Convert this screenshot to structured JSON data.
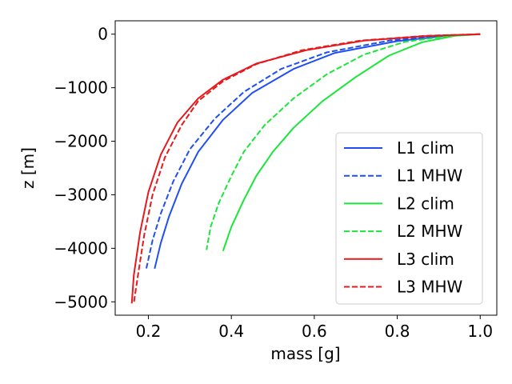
{
  "chart_data": {
    "type": "line",
    "title": "",
    "xlabel": "mass [g]",
    "ylabel": "z [m]",
    "xlim": [
      0.12,
      1.04
    ],
    "ylim": [
      -5250,
      250
    ],
    "xticks": [
      0.2,
      0.4,
      0.6,
      0.8,
      1.0
    ],
    "xtick_labels": [
      "0.2",
      "0.4",
      "0.6",
      "0.8",
      "1.0"
    ],
    "yticks": [
      0,
      -1000,
      -2000,
      -3000,
      -4000,
      -5000
    ],
    "ytick_labels": [
      "0",
      "−1000",
      "−2000",
      "−3000",
      "−4000",
      "−5000"
    ],
    "grid": false,
    "legend_position": "lower-right",
    "series": [
      {
        "name": "L1 clim",
        "color": "#1f4ff2",
        "dash": "solid",
        "points": [
          [
            1.0,
            0
          ],
          [
            0.92,
            -30
          ],
          [
            0.8,
            -130
          ],
          [
            0.65,
            -350
          ],
          [
            0.55,
            -650
          ],
          [
            0.45,
            -1100
          ],
          [
            0.38,
            -1600
          ],
          [
            0.32,
            -2200
          ],
          [
            0.28,
            -2800
          ],
          [
            0.25,
            -3400
          ],
          [
            0.23,
            -3900
          ],
          [
            0.215,
            -4380
          ]
        ]
      },
      {
        "name": "L1 MHW",
        "color": "#1f4ff2",
        "dash": "dashed",
        "points": [
          [
            1.0,
            0
          ],
          [
            0.9,
            -30
          ],
          [
            0.78,
            -120
          ],
          [
            0.63,
            -340
          ],
          [
            0.52,
            -650
          ],
          [
            0.43,
            -1080
          ],
          [
            0.36,
            -1580
          ],
          [
            0.3,
            -2150
          ],
          [
            0.26,
            -2750
          ],
          [
            0.23,
            -3350
          ],
          [
            0.21,
            -3850
          ],
          [
            0.195,
            -4380
          ]
        ]
      },
      {
        "name": "L2 clim",
        "color": "#1ae63a",
        "dash": "solid",
        "points": [
          [
            1.0,
            0
          ],
          [
            0.94,
            -30
          ],
          [
            0.86,
            -150
          ],
          [
            0.78,
            -400
          ],
          [
            0.7,
            -800
          ],
          [
            0.62,
            -1250
          ],
          [
            0.55,
            -1750
          ],
          [
            0.5,
            -2200
          ],
          [
            0.46,
            -2650
          ],
          [
            0.43,
            -3100
          ],
          [
            0.4,
            -3600
          ],
          [
            0.38,
            -4050
          ]
        ]
      },
      {
        "name": "L2 MHW",
        "color": "#1ae63a",
        "dash": "dashed",
        "points": [
          [
            1.0,
            0
          ],
          [
            0.93,
            -30
          ],
          [
            0.82,
            -140
          ],
          [
            0.72,
            -380
          ],
          [
            0.63,
            -750
          ],
          [
            0.55,
            -1200
          ],
          [
            0.48,
            -1700
          ],
          [
            0.43,
            -2200
          ],
          [
            0.4,
            -2650
          ],
          [
            0.37,
            -3150
          ],
          [
            0.35,
            -3600
          ],
          [
            0.34,
            -4030
          ]
        ]
      },
      {
        "name": "L3 clim",
        "color": "#e6191c",
        "dash": "solid",
        "points": [
          [
            1.0,
            0
          ],
          [
            0.88,
            -30
          ],
          [
            0.72,
            -120
          ],
          [
            0.58,
            -300
          ],
          [
            0.46,
            -550
          ],
          [
            0.38,
            -850
          ],
          [
            0.32,
            -1200
          ],
          [
            0.27,
            -1650
          ],
          [
            0.23,
            -2250
          ],
          [
            0.2,
            -2950
          ],
          [
            0.18,
            -3700
          ],
          [
            0.165,
            -4500
          ],
          [
            0.16,
            -5030
          ]
        ]
      },
      {
        "name": "L3 MHW",
        "color": "#e6191c",
        "dash": "dashed",
        "points": [
          [
            1.0,
            0
          ],
          [
            0.87,
            -30
          ],
          [
            0.71,
            -120
          ],
          [
            0.57,
            -300
          ],
          [
            0.46,
            -560
          ],
          [
            0.38,
            -880
          ],
          [
            0.32,
            -1250
          ],
          [
            0.28,
            -1700
          ],
          [
            0.24,
            -2300
          ],
          [
            0.21,
            -3000
          ],
          [
            0.19,
            -3750
          ],
          [
            0.175,
            -4500
          ],
          [
            0.165,
            -5020
          ]
        ]
      }
    ]
  }
}
